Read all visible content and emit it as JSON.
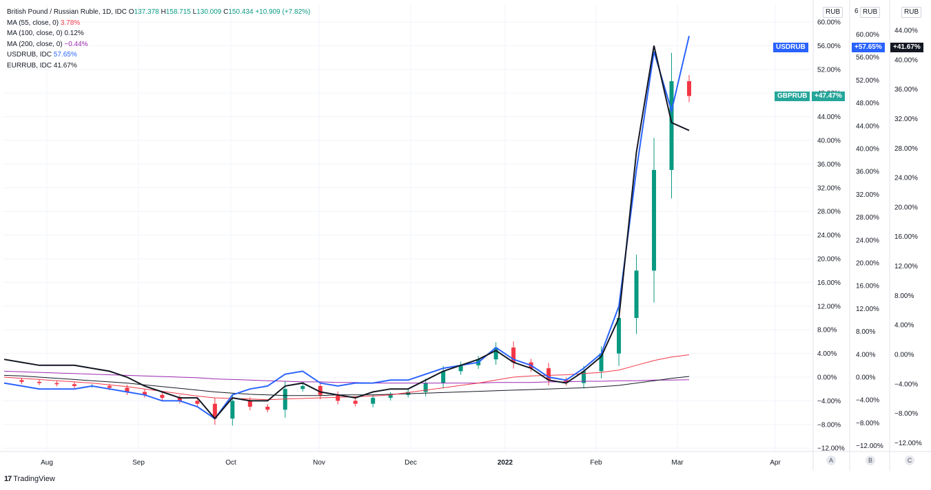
{
  "header": {
    "symbol_title": "British Pound / Russian Ruble, 1D, IDC",
    "open_label": "O",
    "open": "137.378",
    "high_label": "H",
    "high": "158.715",
    "low_label": "L",
    "low": "130.009",
    "close_label": "C",
    "close": "150.434",
    "change": "+10.909 (+7.82%)"
  },
  "legend": [
    {
      "label": "MA (55, close, 0)",
      "value": "3.78%",
      "color": "#f23645"
    },
    {
      "label": "MA (100, close, 0)",
      "value": "0.12%",
      "color": "#131722"
    },
    {
      "label": "MA (200, close, 0)",
      "value": "−0.44%",
      "color": "#9c27b0"
    },
    {
      "label": "USDRUB, IDC",
      "value": "57.65%",
      "color": "#2962ff"
    },
    {
      "label": "EURRUB, IDC",
      "value": "41.67%",
      "color": "#131722"
    }
  ],
  "scales": {
    "unit": "RUB",
    "unit_b_prefix": "6",
    "scale_letters": [
      "A",
      "B",
      "C"
    ]
  },
  "badges": {
    "usdrub_name": "USDRUB",
    "usdrub_value": "+57.65%",
    "eurrub_value": "+41.67%",
    "gbprub_name": "GBPRUB",
    "gbprub_value": "+47.47%"
  },
  "footer": {
    "brand": "TradingView",
    "logo": "17"
  },
  "colors": {
    "up": "#089981",
    "down": "#f23645",
    "usd": "#2962ff",
    "eur": "#131722",
    "ma55": "#f23645",
    "ma100": "#131722",
    "ma200": "#9c27b0",
    "grid": "#eef0f4"
  },
  "chart_data": {
    "type": "line",
    "title": "British Pound / Russian Ruble, 1D, IDC",
    "x_axis": {
      "ticks": [
        "Aug",
        "Sep",
        "Oct",
        "Nov",
        "Dec",
        "2022",
        "Feb",
        "Mar",
        "Apr"
      ]
    },
    "y_axes": [
      {
        "id": "A",
        "unit": "RUB",
        "ticks": [
          "60.00%",
          "56.00%",
          "52.00%",
          "48.00%",
          "44.00%",
          "40.00%",
          "36.00%",
          "32.00%",
          "28.00%",
          "24.00%",
          "20.00%",
          "16.00%",
          "12.00%",
          "8.00%",
          "4.00%",
          "0.00%",
          "−4.00%",
          "−8.00%",
          "−12.00%"
        ],
        "range": [
          -12,
          60
        ]
      },
      {
        "id": "B",
        "unit": "RUB",
        "ticks": [
          "60.00%",
          "56.00%",
          "52.00%",
          "48.00%",
          "44.00%",
          "40.00%",
          "36.00%",
          "32.00%",
          "28.00%",
          "24.00%",
          "20.00%",
          "16.00%",
          "12.00%",
          "8.00%",
          "4.00%",
          "0.00%",
          "−4.00%",
          "−8.00%",
          "−12.00%"
        ],
        "range": [
          -12,
          60
        ]
      },
      {
        "id": "C",
        "unit": "RUB",
        "ticks": [
          "44.00%",
          "40.00%",
          "36.00%",
          "32.00%",
          "28.00%",
          "24.00%",
          "20.00%",
          "16.00%",
          "12.00%",
          "8.00%",
          "4.00%",
          "0.00%",
          "−4.00%",
          "−8.00%",
          "−12.00%"
        ],
        "range": [
          -12,
          44
        ]
      }
    ],
    "series_points": {
      "dates_note": "approx weekly",
      "x": [
        0,
        1,
        2,
        3,
        4,
        5,
        6,
        7,
        8,
        9,
        10,
        11,
        12,
        13,
        14,
        15,
        16,
        17,
        18,
        19,
        20,
        21,
        22,
        23,
        24,
        25,
        26,
        27,
        28,
        29,
        30,
        31,
        32,
        33,
        34,
        35,
        36,
        37,
        38,
        39
      ],
      "gbprub": [
        -0.5,
        -0.8,
        -1.0,
        -1.2,
        -1.5,
        -1.5,
        -1.8,
        -2.5,
        -3.0,
        -3.5,
        -4.0,
        -4.5,
        -7.0,
        -4.0,
        -5.0,
        -5.5,
        -2.0,
        -1.5,
        -3.0,
        -4.0,
        -4.5,
        -3.5,
        -3.0,
        -2.5,
        -1.0,
        1.0,
        2.0,
        3.0,
        5.0,
        2.5,
        1.5,
        -0.5,
        -1.0,
        1.0,
        4.0,
        10.0,
        18.0,
        35.0,
        50.0,
        47.5
      ],
      "usdrub": [
        -1.0,
        -1.5,
        -2.0,
        -2.0,
        -2.0,
        -1.5,
        -2.0,
        -2.5,
        -3.0,
        -4.0,
        -4.0,
        -5.0,
        -7.0,
        -3.0,
        -2.0,
        -1.5,
        0.5,
        1.0,
        -1.0,
        -1.5,
        -1.0,
        -1.0,
        -0.5,
        -0.5,
        0.5,
        1.5,
        2.0,
        2.5,
        5.0,
        3.0,
        2.0,
        0.0,
        -0.5,
        1.5,
        4.0,
        12.0,
        35.0,
        55.0,
        45.0,
        57.65
      ],
      "eurrub": [
        3.0,
        2.5,
        2.0,
        2.0,
        2.0,
        1.5,
        1.0,
        0.0,
        -1.5,
        -2.5,
        -3.5,
        -3.5,
        -7.0,
        -3.5,
        -4.0,
        -4.0,
        -1.5,
        -1.0,
        -2.5,
        -3.0,
        -3.5,
        -2.5,
        -2.0,
        -2.0,
        -0.5,
        1.0,
        2.0,
        3.0,
        4.5,
        2.5,
        1.5,
        -0.5,
        -1.0,
        1.0,
        3.5,
        10.0,
        38.0,
        56.0,
        43.0,
        41.67
      ],
      "ma55": [
        0.0,
        -0.2,
        -0.4,
        -0.6,
        -0.8,
        -1.0,
        -1.3,
        -1.6,
        -2.0,
        -2.4,
        -2.8,
        -3.2,
        -3.5,
        -3.6,
        -3.7,
        -3.8,
        -3.7,
        -3.6,
        -3.5,
        -3.4,
        -3.3,
        -3.2,
        -3.0,
        -2.6,
        -2.2,
        -1.8,
        -1.4,
        -1.0,
        -0.5,
        0.0,
        0.2,
        0.3,
        0.4,
        0.6,
        0.8,
        1.2,
        2.0,
        2.8,
        3.4,
        3.78
      ],
      "ma100": [
        0.3,
        0.2,
        0.0,
        -0.2,
        -0.4,
        -0.6,
        -0.8,
        -1.0,
        -1.3,
        -1.6,
        -1.9,
        -2.2,
        -2.5,
        -2.7,
        -2.9,
        -3.0,
        -3.1,
        -3.1,
        -3.1,
        -3.0,
        -3.0,
        -3.0,
        -2.9,
        -2.8,
        -2.7,
        -2.6,
        -2.5,
        -2.4,
        -2.3,
        -2.2,
        -2.1,
        -2.0,
        -1.9,
        -1.8,
        -1.6,
        -1.4,
        -1.0,
        -0.6,
        -0.2,
        0.12
      ],
      "ma200": [
        1.0,
        0.9,
        0.8,
        0.7,
        0.6,
        0.5,
        0.4,
        0.3,
        0.2,
        0.1,
        0.0,
        -0.1,
        -0.3,
        -0.4,
        -0.5,
        -0.6,
        -0.7,
        -0.8,
        -0.8,
        -0.9,
        -0.9,
        -1.0,
        -1.0,
        -1.0,
        -1.0,
        -1.0,
        -1.0,
        -1.0,
        -0.9,
        -0.9,
        -0.9,
        -0.8,
        -0.8,
        -0.7,
        -0.7,
        -0.6,
        -0.6,
        -0.5,
        -0.5,
        -0.44
      ]
    }
  }
}
